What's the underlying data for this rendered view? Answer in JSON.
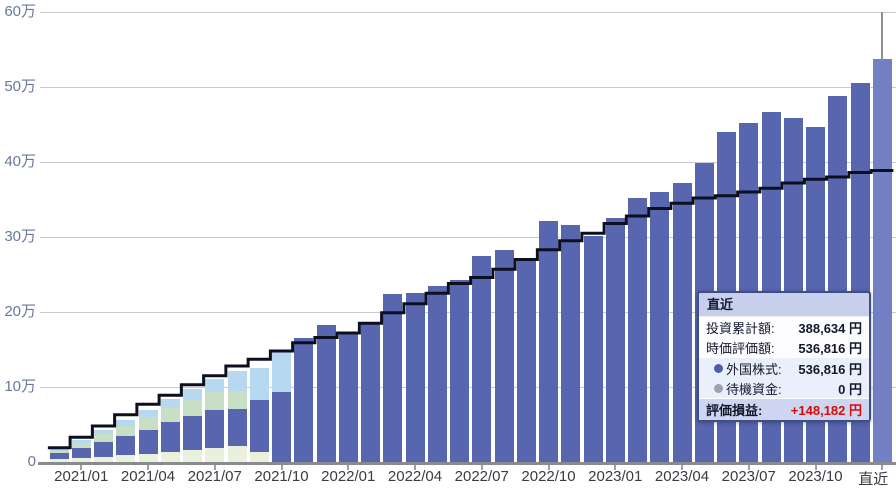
{
  "chart_data": {
    "type": "bar",
    "subtype": "stacked-bars-with-cumulative-step-line",
    "title": "",
    "xlabel": "",
    "ylabel": "",
    "ylim": [
      0,
      600000
    ],
    "grid": "horizontal",
    "legend_position": "none",
    "y_axis": {
      "labels": [
        "0",
        "10万",
        "20万",
        "30万",
        "40万",
        "50万",
        "60万"
      ],
      "tick_interval_yen": 100000
    },
    "x_tick_labels": [
      "2021/01",
      "2021/04",
      "2021/07",
      "2021/10",
      "2022/01",
      "2022/04",
      "2022/07",
      "2022/10",
      "2023/01",
      "2023/04",
      "2023/07",
      "2023/10",
      "直近"
    ],
    "line_series": {
      "name": "投資累計額",
      "color": "#0B0F1E"
    },
    "bar_series_name": "時価評価額",
    "segment_keys": [
      "pale-green-asset",
      "foreign-stock",
      "light-green-asset",
      "light-blue-asset"
    ],
    "segment_colors": [
      "#E9F0DB",
      "#5766AF",
      "#C8DFC5",
      "#B7D8F1"
    ],
    "highlight_last_bar_color": "#7380C3",
    "crosshair_color": "#8E8E98",
    "months": [
      {
        "label": "2020/12",
        "invested": 19000,
        "segments": [
          3500,
          9000,
          2500,
          2000
        ],
        "tick": false
      },
      {
        "label": "2021/01",
        "invested": 33000,
        "segments": [
          5000,
          14000,
          6000,
          4000
        ],
        "tick": true
      },
      {
        "label": "2021/02",
        "invested": 48000,
        "segments": [
          7000,
          20000,
          10000,
          6000
        ],
        "tick": false
      },
      {
        "label": "2021/03",
        "invested": 63000,
        "segments": [
          9000,
          26000,
          13000,
          8000
        ],
        "tick": false
      },
      {
        "label": "2021/04",
        "invested": 77000,
        "segments": [
          11000,
          32000,
          17000,
          10000
        ],
        "tick": true
      },
      {
        "label": "2021/05",
        "invested": 89000,
        "segments": [
          14000,
          39000,
          19000,
          12000
        ],
        "tick": false
      },
      {
        "label": "2021/06",
        "invested": 103000,
        "segments": [
          16000,
          45000,
          22000,
          15000
        ],
        "tick": false
      },
      {
        "label": "2021/07",
        "invested": 115000,
        "segments": [
          19000,
          50000,
          24000,
          18000
        ],
        "tick": true
      },
      {
        "label": "2021/08",
        "invested": 128000,
        "segments": [
          21000,
          50000,
          24000,
          27000
        ],
        "tick": false
      },
      {
        "label": "2021/09",
        "invested": 137000,
        "segments": [
          13000,
          70000,
          0,
          42000
        ],
        "tick": false
      },
      {
        "label": "2021/10",
        "invested": 148000,
        "segments": [
          0,
          93000,
          0,
          57000
        ],
        "tick": true
      },
      {
        "label": "2021/11",
        "invested": 159000,
        "segments": [
          0,
          165000,
          0,
          0
        ],
        "tick": false
      },
      {
        "label": "2021/12",
        "invested": 166000,
        "segments": [
          0,
          183000,
          0,
          0
        ],
        "tick": false
      },
      {
        "label": "2022/01",
        "invested": 172000,
        "segments": [
          0,
          174000,
          0,
          0
        ],
        "tick": true
      },
      {
        "label": "2022/02",
        "invested": 185000,
        "segments": [
          0,
          186000,
          0,
          0
        ],
        "tick": false
      },
      {
        "label": "2022/03",
        "invested": 199000,
        "segments": [
          0,
          224000,
          0,
          0
        ],
        "tick": false
      },
      {
        "label": "2022/04",
        "invested": 211000,
        "segments": [
          0,
          226000,
          0,
          0
        ],
        "tick": true
      },
      {
        "label": "2022/05",
        "invested": 225000,
        "segments": [
          0,
          235000,
          0,
          0
        ],
        "tick": false
      },
      {
        "label": "2022/06",
        "invested": 238000,
        "segments": [
          0,
          243000,
          0,
          0
        ],
        "tick": false
      },
      {
        "label": "2022/07",
        "invested": 246000,
        "segments": [
          0,
          275000,
          0,
          0
        ],
        "tick": true
      },
      {
        "label": "2022/08",
        "invested": 257000,
        "segments": [
          0,
          283000,
          0,
          0
        ],
        "tick": false
      },
      {
        "label": "2022/09",
        "invested": 270000,
        "segments": [
          0,
          272000,
          0,
          0
        ],
        "tick": false
      },
      {
        "label": "2022/10",
        "invested": 283000,
        "segments": [
          0,
          322000,
          0,
          0
        ],
        "tick": true
      },
      {
        "label": "2022/11",
        "invested": 295000,
        "segments": [
          0,
          316000,
          0,
          0
        ],
        "tick": false
      },
      {
        "label": "2022/12",
        "invested": 305000,
        "segments": [
          0,
          301000,
          0,
          0
        ],
        "tick": false
      },
      {
        "label": "2023/01",
        "invested": 318000,
        "segments": [
          0,
          325000,
          0,
          0
        ],
        "tick": true
      },
      {
        "label": "2023/02",
        "invested": 328000,
        "segments": [
          0,
          352000,
          0,
          0
        ],
        "tick": false
      },
      {
        "label": "2023/03",
        "invested": 338000,
        "segments": [
          0,
          360000,
          0,
          0
        ],
        "tick": false
      },
      {
        "label": "2023/04",
        "invested": 345000,
        "segments": [
          0,
          372000,
          0,
          0
        ],
        "tick": true
      },
      {
        "label": "2023/05",
        "invested": 352000,
        "segments": [
          0,
          399000,
          0,
          0
        ],
        "tick": false
      },
      {
        "label": "2023/06",
        "invested": 355000,
        "segments": [
          0,
          440000,
          0,
          0
        ],
        "tick": false
      },
      {
        "label": "2023/07",
        "invested": 360000,
        "segments": [
          0,
          452000,
          0,
          0
        ],
        "tick": true
      },
      {
        "label": "2023/08",
        "invested": 365000,
        "segments": [
          0,
          467000,
          0,
          0
        ],
        "tick": false
      },
      {
        "label": "2023/09",
        "invested": 372000,
        "segments": [
          0,
          459000,
          0,
          0
        ],
        "tick": false
      },
      {
        "label": "2023/10",
        "invested": 377000,
        "segments": [
          0,
          447000,
          0,
          0
        ],
        "tick": true
      },
      {
        "label": "2023/11",
        "invested": 380000,
        "segments": [
          0,
          488000,
          0,
          0
        ],
        "tick": false
      },
      {
        "label": "2023/12",
        "invested": 386000,
        "segments": [
          0,
          505000,
          0,
          0
        ],
        "tick": false
      },
      {
        "label": "直近",
        "invested": 388634,
        "segments": [
          0,
          536816,
          0,
          0
        ],
        "tick": true
      }
    ]
  },
  "tooltip": {
    "title": "直近",
    "main_rows": [
      {
        "label": "投資累計額:",
        "value": "388,634 円"
      },
      {
        "label": "時価評価額:",
        "value": "536,816 円"
      }
    ],
    "asset_rows": [
      {
        "label": "外国株式:",
        "value": "536,816 円",
        "dot_color": "#4D5CAB",
        "dot_name": "foreign-stock-dot-icon"
      },
      {
        "label": "待機資金:",
        "value": "0 円",
        "dot_color": "#9EA0AA",
        "dot_name": "reserve-cash-dot-icon"
      }
    ],
    "result_row": {
      "label": "評価損益:",
      "value": "+148,182 円",
      "value_color": "#D80A0A"
    }
  }
}
